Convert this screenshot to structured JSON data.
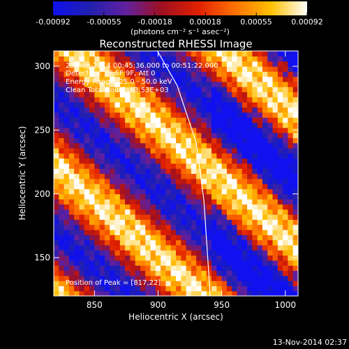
{
  "colorbar": {
    "ticks": [
      "-0.00092",
      "-0.00055",
      "-0.00018",
      "0.00018",
      "0.00055",
      "0.00092"
    ],
    "units": "(photons cm⁻² s⁻¹ asec⁻²)",
    "stops": [
      "#1010f0",
      "#2020b0",
      "#6020a0",
      "#a01020",
      "#e02000",
      "#ff7000",
      "#ffc000",
      "#ffffff"
    ]
  },
  "chart_data": {
    "type": "heatmap",
    "title": "Reconstructed RHESSI Image",
    "xlabel": "Heliocentric X (arcsec)",
    "ylabel": "Heliocentric Y (arcsec)",
    "xlim": [
      818,
      1010
    ],
    "ylim": [
      120,
      312
    ],
    "xticks": [
      850,
      900,
      950,
      1000
    ],
    "yticks": [
      150,
      200,
      250,
      300
    ],
    "value_range": [
      -0.00092,
      0.00092
    ],
    "annotations": [
      "23-Aug-2014 00:45:36.000 to 00:51:22.000",
      "Detectors: 3F 6F 9F, Att 0",
      "Energy Range: 25.0 - 50.0 keV",
      "Clean    Total counts: 3.53E+03"
    ],
    "peak_label": "Position of Peak = [817,22]",
    "limb_curve": [
      [
        896,
        318
      ],
      [
        915,
        285
      ],
      [
        930,
        240
      ],
      [
        936,
        195
      ],
      [
        939,
        150
      ],
      [
        941,
        120
      ]
    ]
  },
  "footer": {
    "timestamp": "13-Nov-2014 02:37"
  }
}
